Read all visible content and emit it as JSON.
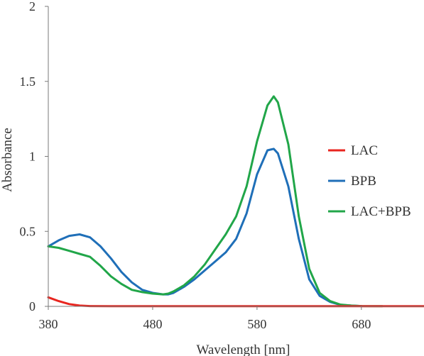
{
  "chart_data": {
    "type": "line",
    "title": "",
    "xlabel": "Wavelength [nm]",
    "ylabel": "Absorbance",
    "xlim": [
      380,
      740
    ],
    "ylim": [
      0,
      2
    ],
    "xticks": [
      380,
      480,
      580,
      680
    ],
    "yticks": [
      0,
      0.5,
      1,
      1.5,
      2
    ],
    "xtick_labels": [
      "380",
      "480",
      "580",
      "680"
    ],
    "ytick_labels": [
      "0",
      "0.5",
      "1",
      "1.5",
      "2"
    ],
    "grid": false,
    "legend_position": "right",
    "series": [
      {
        "name": "LAC",
        "color": "#e8251f",
        "x": [
          380,
          390,
          400,
          410,
          420,
          440,
          480,
          540,
          600,
          660,
          740
        ],
        "y": [
          0.06,
          0.035,
          0.015,
          0.005,
          0.002,
          0.001,
          0.001,
          0.001,
          0.001,
          0.001,
          0.001
        ]
      },
      {
        "name": "BPB",
        "color": "#1f6fb8",
        "x": [
          380,
          390,
          400,
          410,
          420,
          430,
          440,
          450,
          460,
          470,
          480,
          490,
          495,
          500,
          510,
          520,
          530,
          540,
          550,
          560,
          570,
          580,
          590,
          596,
          600,
          610,
          620,
          630,
          640,
          650,
          660,
          670,
          680
        ],
        "y": [
          0.4,
          0.44,
          0.47,
          0.48,
          0.46,
          0.4,
          0.32,
          0.23,
          0.16,
          0.11,
          0.09,
          0.08,
          0.08,
          0.09,
          0.13,
          0.18,
          0.24,
          0.3,
          0.36,
          0.45,
          0.62,
          0.88,
          1.04,
          1.05,
          1.02,
          0.8,
          0.45,
          0.18,
          0.07,
          0.03,
          0.01,
          0.005,
          0.002
        ]
      },
      {
        "name": "LAC+BPB",
        "color": "#21a649",
        "x": [
          380,
          390,
          400,
          410,
          420,
          430,
          440,
          450,
          460,
          470,
          480,
          490,
          495,
          500,
          510,
          520,
          530,
          540,
          550,
          560,
          570,
          580,
          590,
          596,
          600,
          610,
          620,
          630,
          640,
          650,
          660,
          670,
          680,
          700
        ],
        "y": [
          0.4,
          0.39,
          0.37,
          0.35,
          0.33,
          0.27,
          0.2,
          0.15,
          0.11,
          0.095,
          0.085,
          0.08,
          0.085,
          0.1,
          0.14,
          0.2,
          0.28,
          0.38,
          0.48,
          0.6,
          0.8,
          1.1,
          1.34,
          1.4,
          1.36,
          1.08,
          0.6,
          0.25,
          0.09,
          0.035,
          0.012,
          0.005,
          0.002,
          0.001
        ]
      }
    ]
  }
}
